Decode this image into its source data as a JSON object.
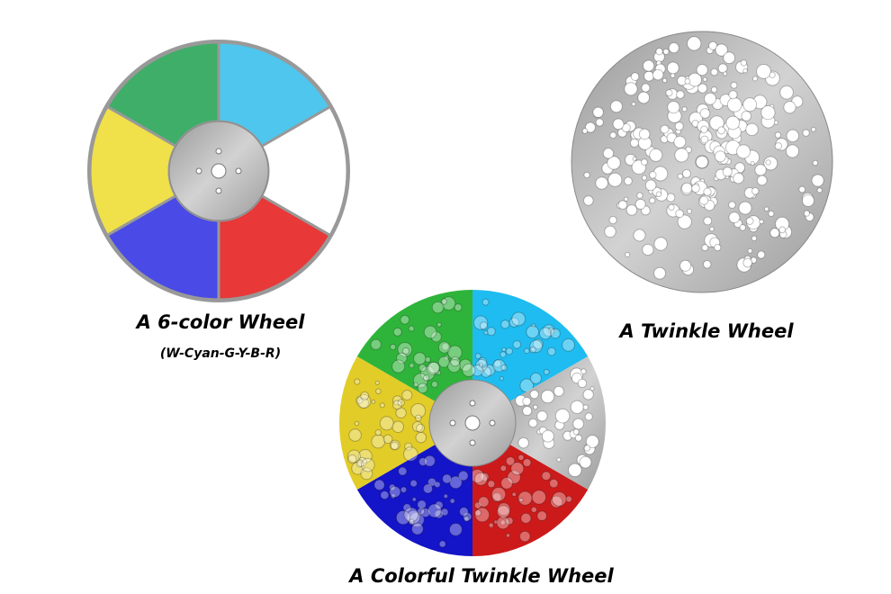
{
  "labels": {
    "color_wheel": "A 6-color Wheel",
    "color_wheel_sub": "(W-Cyan-G-Y-B-R)",
    "twinkle_wheel": "A Twinkle Wheel",
    "colorful_twinkle_wheel": "A Colorful Twinkle Wheel"
  },
  "colors": {
    "white": "#ffffff",
    "cyan": "#4fc6ee",
    "green": "#3fae68",
    "yellow": "#f0e04a",
    "blue": "#4a4ae6",
    "red": "#e83838",
    "metal": "#b4b4b4",
    "twinkle_cyan": "#1ebcf0",
    "twinkle_green": "#2eb43a",
    "twinkle_yellow": "#e2cc28",
    "twinkle_blue": "#1414c8",
    "twinkle_red": "#cc1a1a"
  }
}
